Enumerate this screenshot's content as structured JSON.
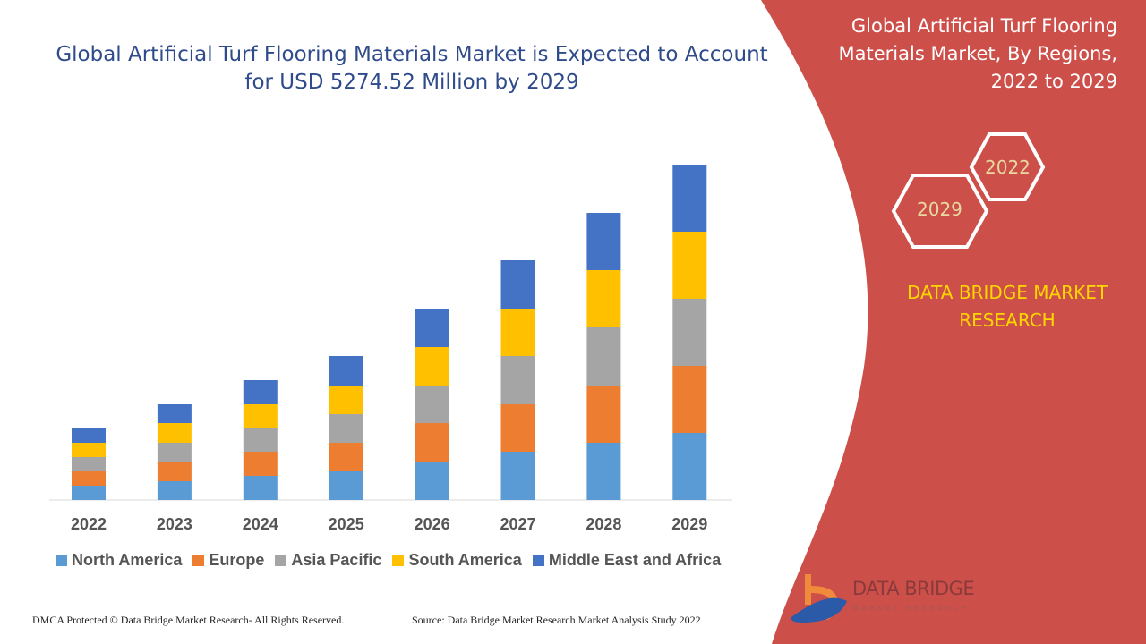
{
  "header": {
    "title": "Global Artificial Turf Flooring Materials Market is Expected to Account for USD 5274.52 Million by 2029"
  },
  "side_panel": {
    "title": "Global Artificial Turf Flooring Materials Market, By Regions, 2022 to 2029",
    "hex_years": [
      "2022",
      "2029"
    ],
    "brand": "DATA BRIDGE MARKET RESEARCH",
    "panel_color": "#cd4f4a"
  },
  "logo": {
    "name": "DATA BRIDGE",
    "tagline": "MARKET RESEARCH"
  },
  "footer": {
    "left": "DMCA Protected © Data Bridge Market Research- All Rights Reserved.",
    "right": "Source: Data Bridge Market Research Market Analysis Study 2022"
  },
  "chart_data": {
    "type": "bar",
    "stacked": true,
    "title": "",
    "xlabel": "",
    "ylabel": "",
    "ylim": [
      0,
      400
    ],
    "grid": false,
    "legend_placement": "bottom",
    "note": "no y-axis printed; values are relative estimates",
    "categories": [
      "2022",
      "2023",
      "2024",
      "2025",
      "2026",
      "2027",
      "2028",
      "2029"
    ],
    "series": [
      {
        "name": "North America",
        "color": "#5b9bd5",
        "values": [
          16,
          21,
          27,
          32,
          43,
          54,
          64,
          75
        ]
      },
      {
        "name": "Europe",
        "color": "#ed7d31",
        "values": [
          16,
          22,
          27,
          32,
          43,
          53,
          64,
          75
        ]
      },
      {
        "name": "Asia Pacific",
        "color": "#a5a5a5",
        "values": [
          16,
          21,
          26,
          32,
          42,
          54,
          65,
          75
        ]
      },
      {
        "name": "South America",
        "color": "#ffc000",
        "values": [
          16,
          22,
          27,
          32,
          43,
          53,
          64,
          75
        ]
      },
      {
        "name": "Middle East and Africa",
        "color": "#4472c4",
        "values": [
          16,
          21,
          27,
          33,
          43,
          54,
          64,
          75
        ]
      }
    ]
  }
}
